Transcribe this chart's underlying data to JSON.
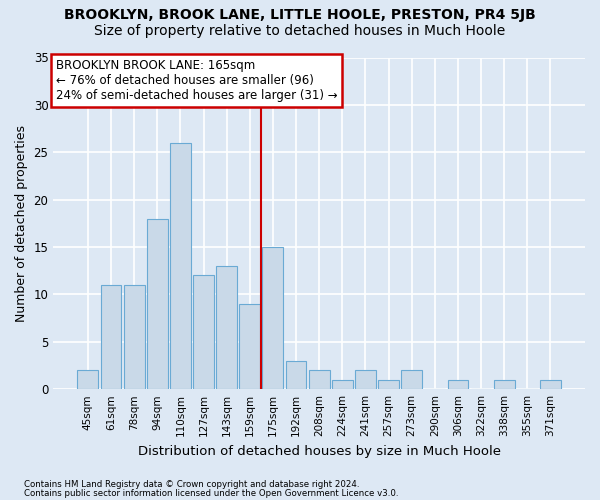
{
  "title1": "BROOKLYN, BROOK LANE, LITTLE HOOLE, PRESTON, PR4 5JB",
  "title2": "Size of property relative to detached houses in Much Hoole",
  "xlabel": "Distribution of detached houses by size in Much Hoole",
  "ylabel": "Number of detached properties",
  "categories": [
    "45sqm",
    "61sqm",
    "78sqm",
    "94sqm",
    "110sqm",
    "127sqm",
    "143sqm",
    "159sqm",
    "175sqm",
    "192sqm",
    "208sqm",
    "224sqm",
    "241sqm",
    "257sqm",
    "273sqm",
    "290sqm",
    "306sqm",
    "322sqm",
    "338sqm",
    "355sqm",
    "371sqm"
  ],
  "values": [
    2,
    11,
    11,
    18,
    26,
    12,
    13,
    9,
    15,
    3,
    2,
    1,
    2,
    1,
    2,
    0,
    1,
    0,
    1,
    0,
    1
  ],
  "bar_color": "#c9d9e8",
  "bar_edgecolor": "#6aaad4",
  "vline_x": 7.5,
  "vline_color": "#cc0000",
  "annotation_text": "BROOKLYN BROOK LANE: 165sqm\n← 76% of detached houses are smaller (96)\n24% of semi-detached houses are larger (31) →",
  "annotation_box_color": "#ffffff",
  "annotation_box_edgecolor": "#cc0000",
  "ylim": [
    0,
    35
  ],
  "yticks": [
    0,
    5,
    10,
    15,
    20,
    25,
    30,
    35
  ],
  "background_color": "#dde8f4",
  "plot_background_color": "#dde8f4",
  "footer1": "Contains HM Land Registry data © Crown copyright and database right 2024.",
  "footer2": "Contains public sector information licensed under the Open Government Licence v3.0.",
  "grid_color": "#ffffff",
  "title1_fontsize": 10,
  "title2_fontsize": 10,
  "xlabel_fontsize": 9.5,
  "ylabel_fontsize": 9,
  "annot_fontsize": 8.5
}
